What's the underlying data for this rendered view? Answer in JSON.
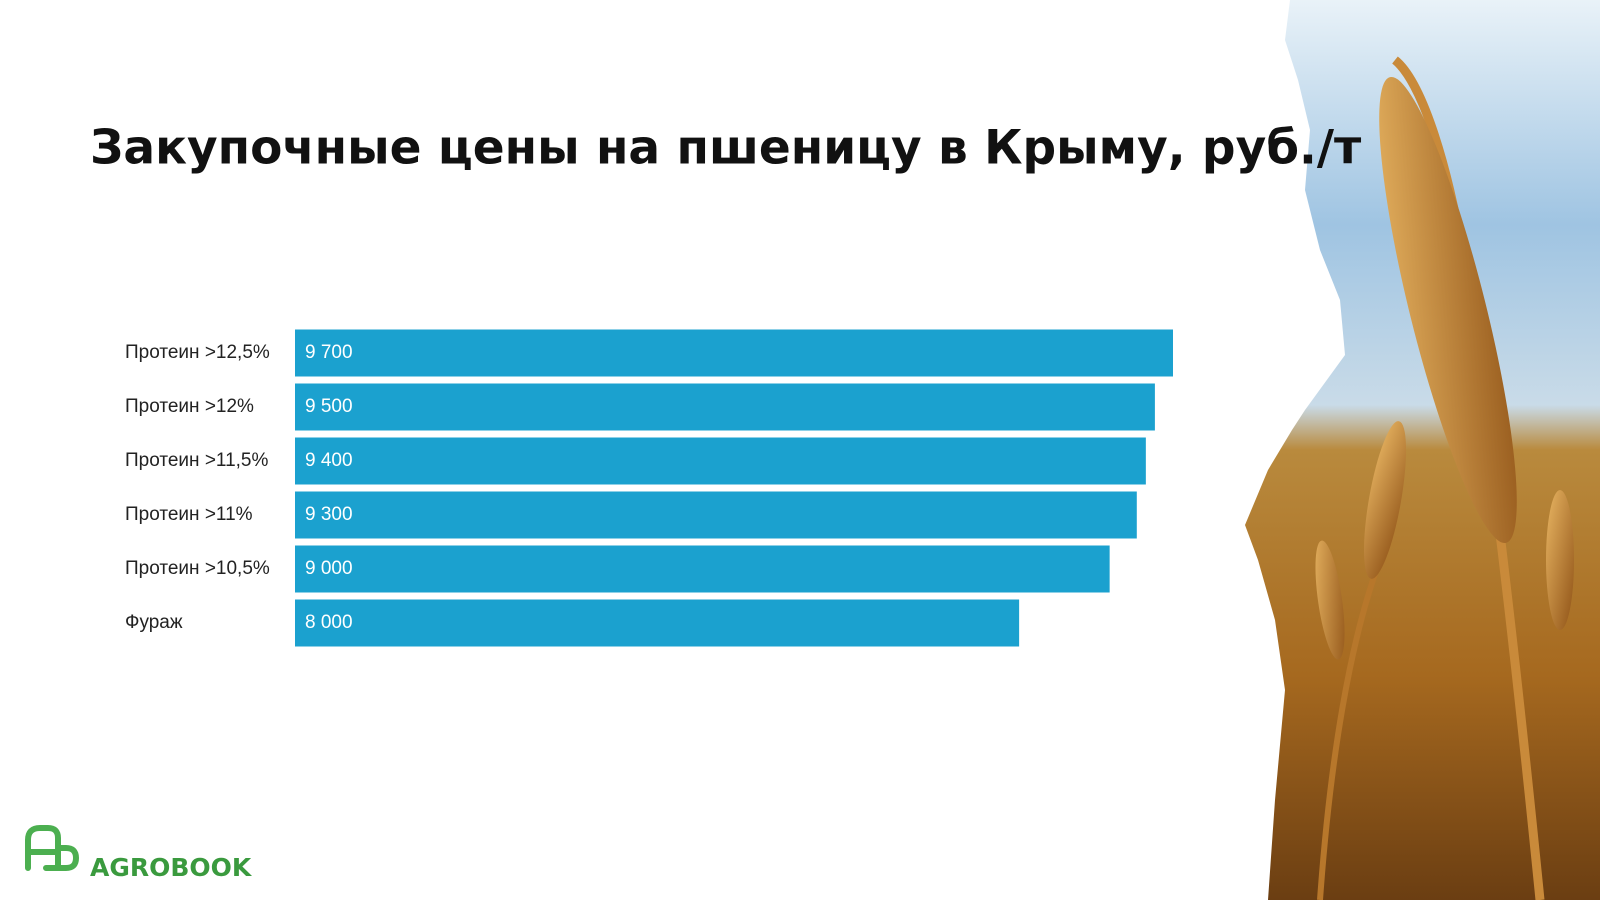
{
  "chart_data": {
    "type": "bar",
    "orientation": "horizontal",
    "title": "Закупочные цены на пшеницу в Крыму, руб./т",
    "categories": [
      "Протеин >12,5%",
      "Протеин >12%",
      "Протеин >11,5%",
      "Протеин >11%",
      "Протеин >10,5%",
      "Фураж"
    ],
    "values": [
      9700,
      9500,
      9400,
      9300,
      9000,
      8000
    ],
    "value_labels": [
      "9 700",
      "9 500",
      "9 400",
      "9 300",
      "9 000",
      "8 000"
    ],
    "color": "#1ba1cf"
  },
  "logo": {
    "text": "AGROBOOK"
  }
}
